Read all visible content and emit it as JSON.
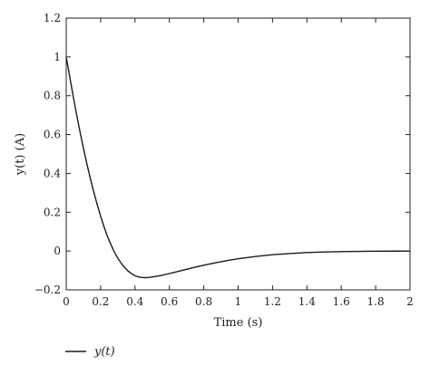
{
  "chart_data": {
    "type": "line",
    "title": "",
    "xlabel": "Time (s)",
    "ylabel": "y(t) (A)",
    "xlim": [
      0,
      2
    ],
    "ylim": [
      -0.2,
      1.2
    ],
    "x_ticks": [
      "0",
      "0.2",
      "0.4",
      "0.6",
      "0.8",
      "1",
      "1.2",
      "1.4",
      "1.6",
      "1.8",
      "2"
    ],
    "y_ticks": [
      "−0.2",
      "0",
      "0.2",
      "0.4",
      "0.6",
      "0.8",
      "1",
      "1.2"
    ],
    "grid": false,
    "legend": {
      "position": "bottom-left",
      "entries": [
        "y(t)"
      ]
    },
    "series": [
      {
        "name": "y(t)",
        "color": "#1a1a1a",
        "x": [
          0,
          0.02,
          0.04,
          0.06,
          0.08,
          0.1,
          0.12,
          0.14,
          0.16,
          0.18,
          0.2,
          0.22,
          0.24,
          0.26,
          0.28,
          0.3,
          0.32,
          0.34,
          0.36,
          0.38,
          0.4,
          0.42,
          0.44,
          0.46,
          0.48,
          0.5,
          0.55,
          0.6,
          0.65,
          0.7,
          0.75,
          0.8,
          0.85,
          0.9,
          0.95,
          1.0,
          1.1,
          1.2,
          1.3,
          1.4,
          1.5,
          1.6,
          1.7,
          1.8,
          1.9,
          2.0
        ],
        "y": [
          1.0,
          0.9,
          0.8,
          0.705,
          0.615,
          0.53,
          0.45,
          0.375,
          0.305,
          0.24,
          0.18,
          0.125,
          0.075,
          0.033,
          -0.005,
          -0.037,
          -0.063,
          -0.085,
          -0.103,
          -0.117,
          -0.127,
          -0.133,
          -0.136,
          -0.137,
          -0.136,
          -0.134,
          -0.126,
          -0.116,
          -0.105,
          -0.094,
          -0.083,
          -0.073,
          -0.064,
          -0.055,
          -0.047,
          -0.04,
          -0.028,
          -0.019,
          -0.013,
          -0.008,
          -0.005,
          -0.003,
          -0.002,
          -0.001,
          -0.0005,
          0.0
        ]
      }
    ]
  }
}
